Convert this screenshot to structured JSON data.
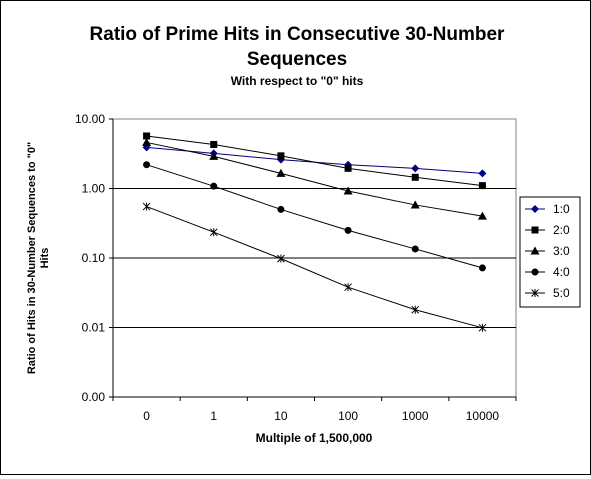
{
  "chart_data": {
    "type": "line",
    "title": "Ratio of Prime Hits in Consecutive 30-Number Sequences",
    "title_lines": [
      "Ratio of Prime Hits in Consecutive 30-Number",
      "Sequences"
    ],
    "subtitle": "With respect to \"0\" hits",
    "xlabel": "Multiple of 1,500,000",
    "ylabel": "Ratio of Hits in 30-Number Sequences to \"0\" Hits",
    "ylabel_lines": [
      "Ratio of Hits in 30-Number Sequences to \"0\"",
      "Hits"
    ],
    "categories": [
      "0",
      "1",
      "10",
      "100",
      "1000",
      "10000"
    ],
    "y_scale": "log",
    "ylim": [
      0.001,
      10
    ],
    "yticks": [
      {
        "value": 10,
        "label": "10.00"
      },
      {
        "value": 1,
        "label": "1.00"
      },
      {
        "value": 0.1,
        "label": "0.10"
      },
      {
        "value": 0.01,
        "label": "0.01"
      },
      {
        "value": 0.001,
        "label": "0.00"
      }
    ],
    "grid": "horizontal",
    "legend_position": "right",
    "series": [
      {
        "name": "1:0",
        "marker": "diamond",
        "color": "#000080",
        "values": [
          3.9,
          3.2,
          2.6,
          2.2,
          1.95,
          1.65
        ]
      },
      {
        "name": "2:0",
        "marker": "square",
        "color": "#000000",
        "values": [
          5.7,
          4.3,
          2.95,
          1.95,
          1.45,
          1.1
        ]
      },
      {
        "name": "3:0",
        "marker": "triangle",
        "color": "#000000",
        "values": [
          4.6,
          2.9,
          1.65,
          0.92,
          0.58,
          0.4
        ]
      },
      {
        "name": "4:0",
        "marker": "circle",
        "color": "#000000",
        "values": [
          2.2,
          1.08,
          0.5,
          0.25,
          0.135,
          0.072
        ]
      },
      {
        "name": "5:0",
        "marker": "star",
        "color": "#000000",
        "values": [
          0.55,
          0.235,
          0.098,
          0.038,
          0.018,
          0.0099
        ]
      }
    ]
  }
}
